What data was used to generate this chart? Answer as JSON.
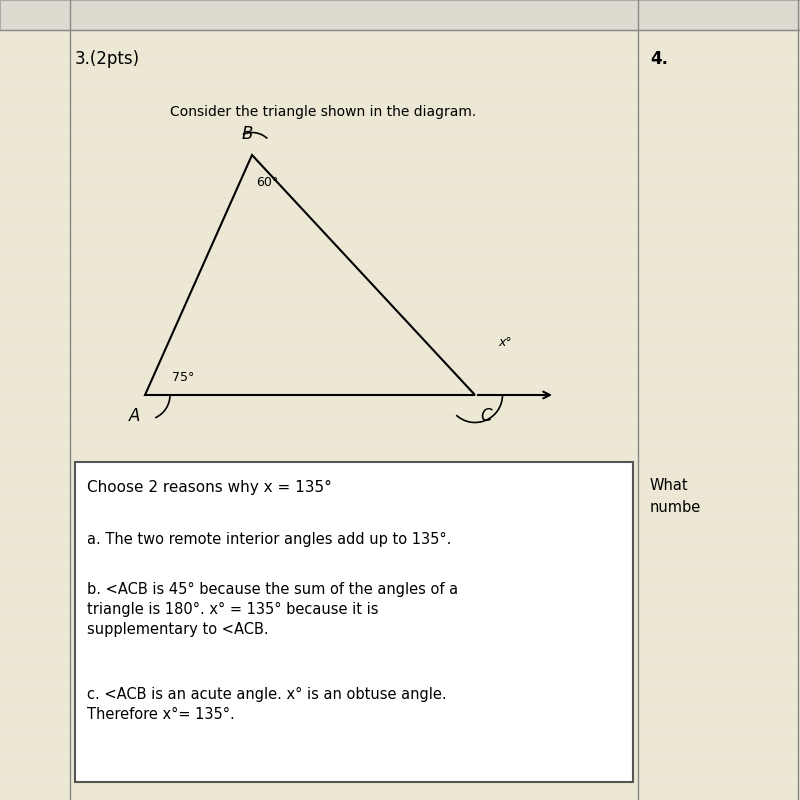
{
  "background_color": "#e8e8e0",
  "cell_bg": "#ece8d8",
  "white_bg": "#ffffff",
  "border_color": "#888888",
  "figsize": [
    8.0,
    8.0
  ],
  "dpi": 100,
  "question_number": "3.(2pts)",
  "question_number_2": "4.",
  "instruction": "Consider the triangle shown in the diagram.",
  "vertex_B_label": "B",
  "vertex_A_label": "A",
  "vertex_C_label": "C",
  "angle_B": "60°",
  "angle_A": "75°",
  "angle_x": "x°",
  "choose_text": "Choose 2 reasons why x = 135°",
  "answer_a": "a. The two remote interior angles add up to 135°.",
  "answer_b": "b. <ACB is 45° because the sum of the angles of a\ntriangle is 180°. x° = 135° because it is\nsupplementary to <ACB.",
  "answer_c": "c. <ACB is an acute angle. x° is an obtuse angle.\nTherefore x°= 135°.",
  "right_text_1": "What",
  "right_text_2": "numbe"
}
